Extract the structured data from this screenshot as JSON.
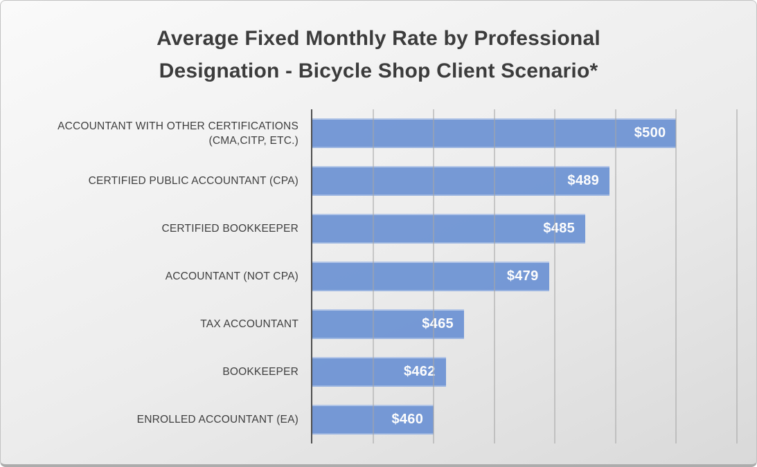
{
  "chart_data": {
    "type": "bar",
    "orientation": "horizontal",
    "title": "Average Fixed Monthly Rate by Professional Designation - Bicycle Shop Client Scenario*",
    "title_lines": [
      "Average Fixed Monthly Rate by Professional",
      "Designation - Bicycle Shop Client Scenario*"
    ],
    "categories": [
      "ACCOUNTANT WITH OTHER CERTIFICATIONS (CMA,CITP, ETC.)",
      "CERTIFIED PUBLIC ACCOUNTANT (CPA)",
      "CERTIFIED BOOKKEEPER",
      "ACCOUNTANT (NOT CPA)",
      "TAX ACCOUNTANT",
      "BOOKKEEPER",
      "ENROLLED ACCOUNTANT (EA)"
    ],
    "values": [
      500,
      489,
      485,
      479,
      465,
      462,
      460
    ],
    "data_labels": [
      "$500",
      "$489",
      "$485",
      "$479",
      "$465",
      "$462",
      "$460"
    ],
    "xlabel": "",
    "ylabel": "",
    "xlim": [
      440,
      510
    ],
    "gridline_interval": 10,
    "grid": true,
    "legend": "none",
    "x_tick_labels_visible": false
  },
  "colors": {
    "bar_fill": "#6d93d4",
    "bar_edge_highlight": "#aec3e8",
    "axis_line": "#4c4c4c",
    "gridline": "#a6a6a6",
    "title_text": "#3c3c3c",
    "category_text": "#3e3e3e",
    "value_text": "#ffffff",
    "background_top": "#fafafa",
    "background_bottom": "#d9d9d9"
  }
}
